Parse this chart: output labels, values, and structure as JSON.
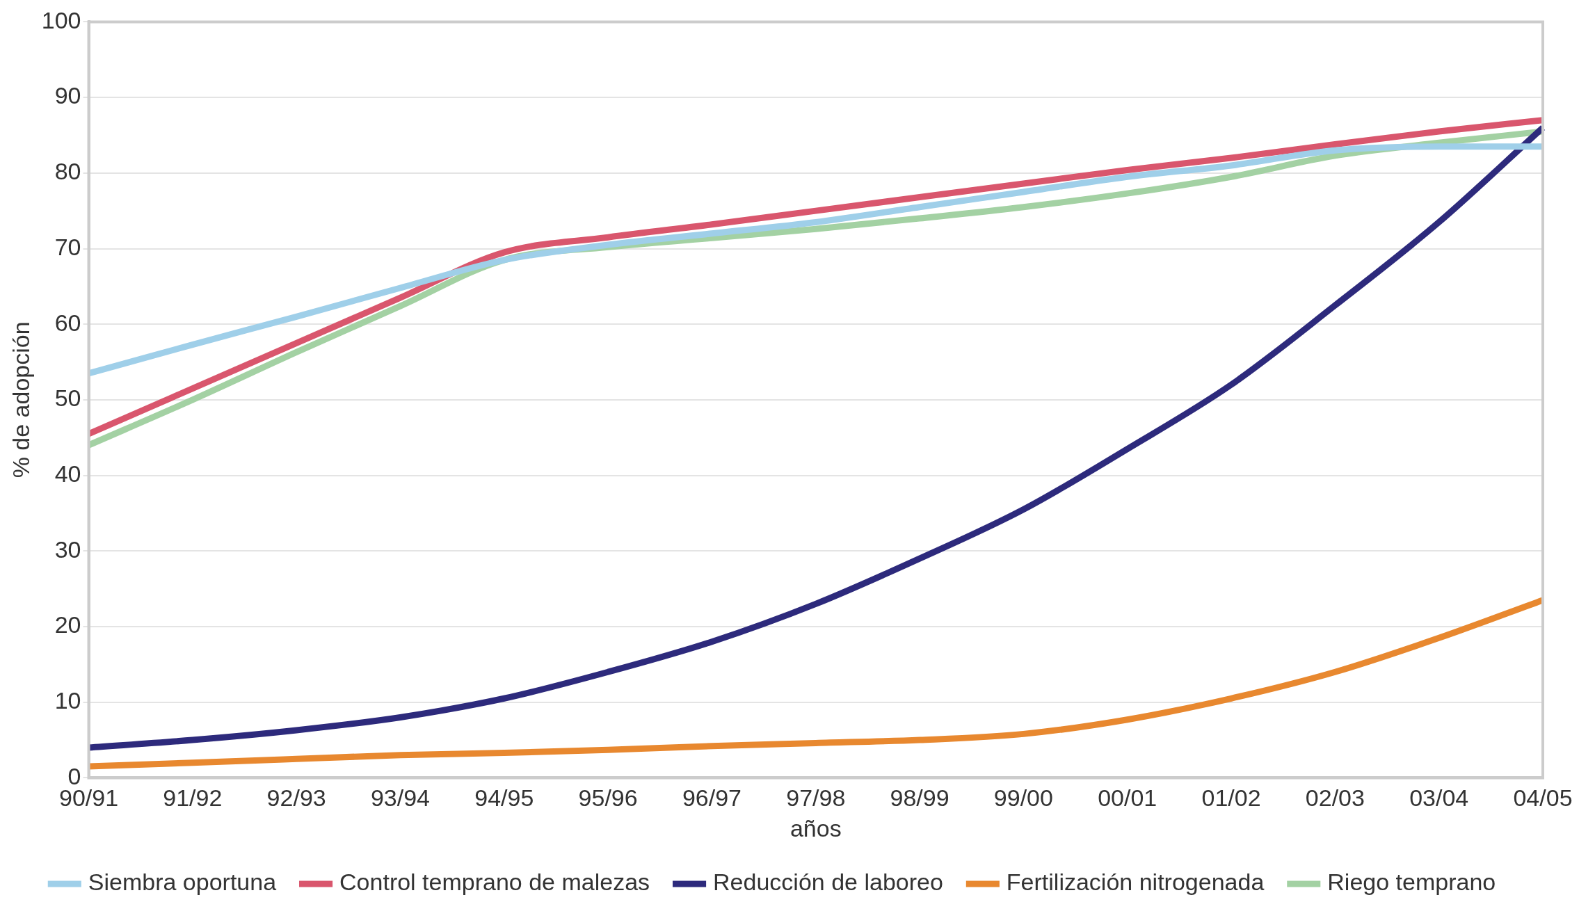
{
  "chart_data": {
    "type": "line",
    "xlabel": "años",
    "ylabel": "% de adopción",
    "categories": [
      "90/91",
      "91/92",
      "92/93",
      "93/94",
      "94/95",
      "95/96",
      "96/97",
      "97/98",
      "98/99",
      "99/00",
      "00/01",
      "01/02",
      "02/03",
      "03/04",
      "04/05"
    ],
    "series": [
      {
        "name": "Siembra oportuna",
        "color": "#9fcfe9",
        "values": [
          53.5,
          57.3,
          61,
          64.8,
          68.5,
          70.5,
          72,
          73.5,
          75.5,
          77.5,
          79.5,
          81,
          83,
          83.5,
          83.5
        ]
      },
      {
        "name": "Control temprano de malezas",
        "color": "#d9566d",
        "values": [
          45.5,
          51.5,
          57.5,
          63.5,
          69.5,
          71.5,
          73.2,
          75,
          76.8,
          78.6,
          80.4,
          82,
          83.8,
          85.5,
          87
        ]
      },
      {
        "name": "Reducción de laboreo",
        "color": "#2d2a7c",
        "values": [
          4,
          5,
          6.3,
          8,
          10.5,
          14,
          18,
          23,
          29,
          35.5,
          43.5,
          52,
          62.5,
          73.5,
          86
        ]
      },
      {
        "name": "Fertilización nitrogenada",
        "color": "#e8882f",
        "values": [
          1.5,
          2,
          2.5,
          3,
          3.3,
          3.7,
          4.2,
          4.6,
          5,
          5.8,
          7.7,
          10.5,
          14,
          18.5,
          23.5
        ]
      },
      {
        "name": "Riego temprano",
        "color": "#a3d1a3",
        "values": [
          44,
          50,
          56.3,
          62.4,
          68.5,
          70.2,
          71.4,
          72.6,
          74,
          75.5,
          77.3,
          79.5,
          82.3,
          84,
          85.5
        ]
      }
    ],
    "ylim": [
      0,
      100
    ],
    "yticks": [
      0,
      10,
      20,
      30,
      40,
      50,
      60,
      70,
      80,
      90,
      100
    ],
    "grid": "y",
    "legend": "bottom",
    "marker": "none",
    "line_style": "solid"
  }
}
